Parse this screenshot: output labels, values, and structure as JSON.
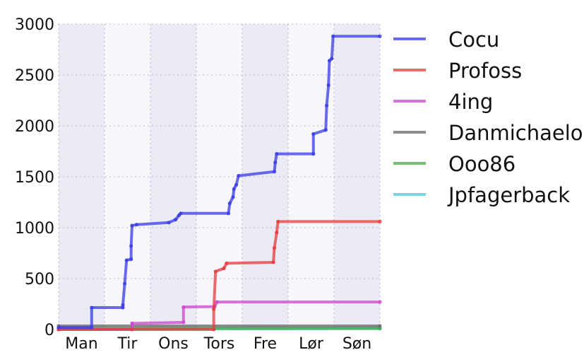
{
  "chart_data": {
    "type": "line",
    "title": "",
    "xlabel": "",
    "ylabel": "",
    "categories": [
      "Man",
      "Tir",
      "Ons",
      "Tors",
      "Fre",
      "Lør",
      "Søn"
    ],
    "xlim": [
      0,
      7
    ],
    "ylim": [
      0,
      3000
    ],
    "yticks": [
      0,
      500,
      1000,
      1500,
      2000,
      2500,
      3000
    ],
    "grid": true,
    "legend_position": "right, outside plot",
    "day_band_colors": [
      "#ebebf5",
      "#f6f6fb"
    ],
    "series": [
      {
        "name": "Cocu",
        "color": "#3a3ae6",
        "points": [
          [
            0,
            20
          ],
          [
            0.72,
            20
          ],
          [
            0.72,
            215
          ],
          [
            1.4,
            215
          ],
          [
            1.4,
            240
          ],
          [
            1.44,
            450
          ],
          [
            1.48,
            680
          ],
          [
            1.58,
            690
          ],
          [
            1.58,
            820
          ],
          [
            1.6,
            1020
          ],
          [
            1.7,
            1030
          ],
          [
            2.4,
            1050
          ],
          [
            2.55,
            1080
          ],
          [
            2.62,
            1120
          ],
          [
            2.66,
            1140
          ],
          [
            3.7,
            1140
          ],
          [
            3.73,
            1240
          ],
          [
            3.8,
            1300
          ],
          [
            3.82,
            1380
          ],
          [
            3.87,
            1420
          ],
          [
            3.92,
            1510
          ],
          [
            4.7,
            1550
          ],
          [
            4.72,
            1640
          ],
          [
            4.75,
            1725
          ],
          [
            5.55,
            1725
          ],
          [
            5.55,
            1920
          ],
          [
            5.82,
            1960
          ],
          [
            5.84,
            2200
          ],
          [
            5.88,
            2400
          ],
          [
            5.9,
            2640
          ],
          [
            5.95,
            2660
          ],
          [
            5.98,
            2880
          ],
          [
            7,
            2880
          ]
        ]
      },
      {
        "name": "Profoss",
        "color": "#e63a3a",
        "points": [
          [
            0,
            0
          ],
          [
            3.38,
            0
          ],
          [
            3.38,
            200
          ],
          [
            3.42,
            570
          ],
          [
            3.6,
            600
          ],
          [
            3.66,
            650
          ],
          [
            4.68,
            660
          ],
          [
            4.7,
            800
          ],
          [
            4.75,
            950
          ],
          [
            4.78,
            1060
          ],
          [
            7,
            1060
          ]
        ]
      },
      {
        "name": "4ing",
        "color": "#cc44cc",
        "points": [
          [
            0,
            0
          ],
          [
            1.6,
            0
          ],
          [
            1.6,
            60
          ],
          [
            2.72,
            70
          ],
          [
            2.72,
            220
          ],
          [
            3.4,
            225
          ],
          [
            3.45,
            270
          ],
          [
            7,
            270
          ]
        ]
      },
      {
        "name": "Danmichaelo",
        "color": "#666666",
        "points": [
          [
            0,
            35
          ],
          [
            7,
            35
          ]
        ]
      },
      {
        "name": "Ooo86",
        "color": "#44aa44",
        "points": [
          [
            0,
            10
          ],
          [
            7,
            12
          ]
        ]
      },
      {
        "name": "Jpfagerback",
        "color": "#44cccc",
        "points": [
          [
            0,
            5
          ],
          [
            7,
            8
          ]
        ]
      }
    ]
  }
}
